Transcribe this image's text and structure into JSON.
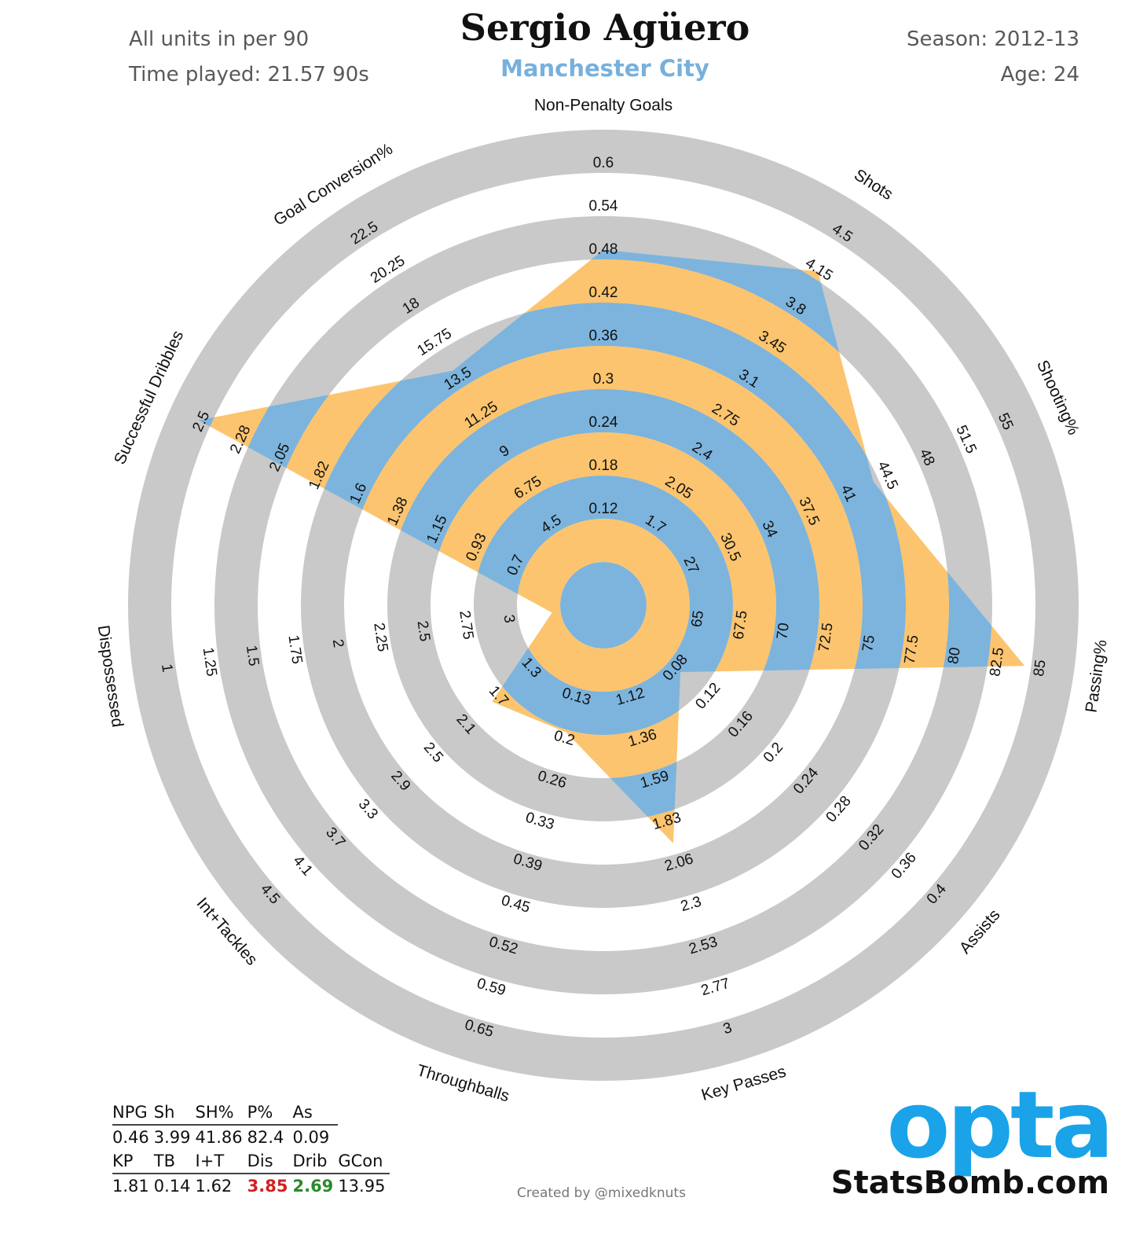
{
  "header": {
    "units_note": "All units in per 90",
    "time_played": "Time played: 21.57 90s",
    "player_name": "Sergio Agüero",
    "team": "Manchester City",
    "season": "Season: 2012-13",
    "age": "Age: 24"
  },
  "chart_data": {
    "type": "radar",
    "title": "Sergio Agüero",
    "subtitle": "Manchester City",
    "colors": {
      "ring_gray": "#c9c9c9",
      "band_blue": "#7cb4dd",
      "band_orange": "#fcc46e"
    },
    "axes": [
      {
        "name": "Non-Penalty Goals",
        "ticks": [
          "0.12",
          "0.18",
          "0.24",
          "0.3",
          "0.36",
          "0.42",
          "0.48",
          "0.54",
          "0.6"
        ],
        "value": 0.46,
        "value_fraction": 0.722
      },
      {
        "name": "Shots",
        "ticks": [
          "1.7",
          "2.05",
          "2.4",
          "2.75",
          "3.1",
          "3.45",
          "3.8",
          "4.15",
          "4.5"
        ],
        "value": 3.99,
        "value_fraction": 0.818
      },
      {
        "name": "Shooting%",
        "ticks": [
          "27",
          "30.5",
          "34",
          "37.5",
          "41",
          "44.5",
          "48",
          "51.5",
          "55"
        ],
        "value": 41.86,
        "value_fraction": 0.587
      },
      {
        "name": "Passing%",
        "ticks": [
          "65",
          "67.5",
          "70",
          "72.5",
          "75",
          "77.5",
          "80",
          "82.5",
          "85"
        ],
        "value": 82.4,
        "value_fraction": 0.885
      },
      {
        "name": "Assists",
        "ticks": [
          "0.08",
          "0.12",
          "0.16",
          "0.2",
          "0.24",
          "0.28",
          "0.32",
          "0.36",
          "0.4"
        ],
        "value": 0.09,
        "value_fraction": 0.136
      },
      {
        "name": "Key Passes",
        "ticks": [
          "1.12",
          "1.36",
          "1.59",
          "1.83",
          "2.06",
          "2.3",
          "2.53",
          "2.77",
          "3"
        ],
        "value": 1.81,
        "value_fraction": 0.474
      },
      {
        "name": "Throughballs",
        "ticks": [
          "0.13",
          "0.2",
          "0.26",
          "0.33",
          "0.39",
          "0.45",
          "0.52",
          "0.59",
          "0.65"
        ],
        "value": 0.14,
        "value_fraction": 0.206
      },
      {
        "name": "Int+Tackles",
        "ticks": [
          "1.3",
          "1.7",
          "2.1",
          "2.5",
          "2.9",
          "3.3",
          "3.7",
          "4.1",
          "4.5"
        ],
        "value": 1.62,
        "value_fraction": 0.241
      },
      {
        "name": "Dispossessed",
        "reversed": true,
        "ticks": [
          "3",
          "2.75",
          "2.5",
          "2.25",
          "2",
          "1.75",
          "1.5",
          "1.25",
          "1"
        ],
        "value": 3.85,
        "value_fraction": 0.02
      },
      {
        "name": "Successful Dribbles",
        "ticks": [
          "0.7",
          "0.93",
          "1.15",
          "1.38",
          "1.6",
          "1.82",
          "2.05",
          "2.28",
          "2.5"
        ],
        "value": 2.69,
        "value_fraction": 0.93
      },
      {
        "name": "Goal Conversion%",
        "ticks": [
          "4.5",
          "6.75",
          "9",
          "11.25",
          "13.5",
          "15.75",
          "18",
          "20.25",
          "22.5"
        ],
        "value": 13.95,
        "value_fraction": 0.545
      }
    ]
  },
  "stats_table": {
    "row1_headers": [
      "NPG",
      "Sh",
      "SH%",
      "P%",
      "As"
    ],
    "row1_values": [
      "0.46",
      "3.99",
      "41.86",
      "82.4",
      "0.09"
    ],
    "row2_headers": [
      "KP",
      "TB",
      "I+T",
      "Dis",
      "Drib",
      "GCon"
    ],
    "row2_values": [
      "1.81",
      "0.14",
      "1.62",
      "3.85",
      "2.69",
      "13.95"
    ]
  },
  "footer": {
    "credit": "Created by @mixedknuts",
    "opta_logo": "opta",
    "statsbomb": "StatsBomb.com"
  }
}
